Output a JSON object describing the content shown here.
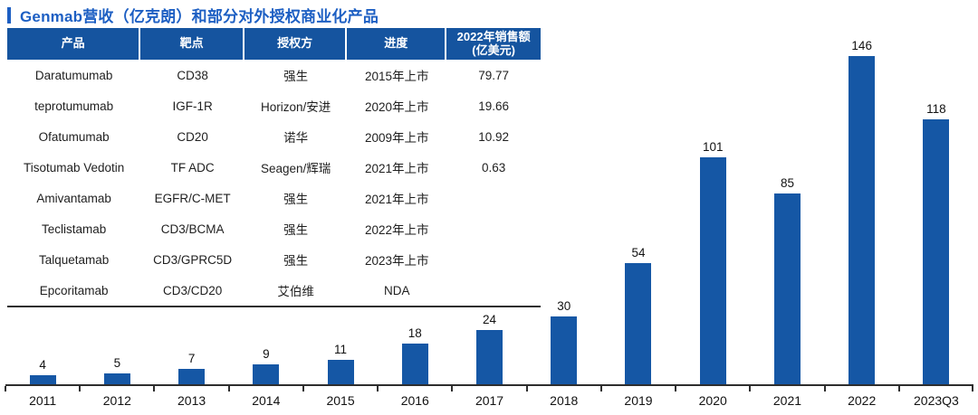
{
  "title": {
    "text": "Genmab营收（亿克朗）和部分对外授权商业化产品",
    "accent_color": "#1d5fc3"
  },
  "table": {
    "header_bg_color": "#15549f",
    "headers": [
      "产品",
      "靶点",
      "授权方",
      "进度",
      "2022年销售额\n(亿美元)"
    ],
    "rows": [
      [
        "Daratumumab",
        "CD38",
        "强生",
        "2015年上市",
        "79.77"
      ],
      [
        "teprotumumab",
        "IGF-1R",
        "Horizon/安进",
        "2020年上市",
        "19.66"
      ],
      [
        "Ofatumumab",
        "CD20",
        "诺华",
        "2009年上市",
        "10.92"
      ],
      [
        "Tisotumab Vedotin",
        "TF ADC",
        "Seagen/辉瑞",
        "2021年上市",
        "0.63"
      ],
      [
        "Amivantamab",
        "EGFR/C-MET",
        "强生",
        "2021年上市",
        ""
      ],
      [
        "Teclistamab",
        "CD3/BCMA",
        "强生",
        "2022年上市",
        ""
      ],
      [
        "Talquetamab",
        "CD3/GPRC5D",
        "强生",
        "2023年上市",
        ""
      ],
      [
        "Epcoritamab",
        "CD3/CD20",
        "艾伯维",
        "NDA",
        ""
      ]
    ]
  },
  "chart_data": {
    "type": "bar",
    "title": "Genmab营收（亿克朗）",
    "categories": [
      "2011",
      "2012",
      "2013",
      "2014",
      "2015",
      "2016",
      "2017",
      "2018",
      "2019",
      "2020",
      "2021",
      "2022",
      "2023Q3"
    ],
    "values": [
      4,
      5,
      7,
      9,
      11,
      18,
      24,
      30,
      54,
      101,
      85,
      146,
      118
    ],
    "xlabel": "",
    "ylabel": "",
    "ylim": [
      0,
      150
    ],
    "grid": false,
    "legend": false,
    "value_labels": true,
    "bar_color": "#1557a5",
    "axis_color": "#2e2e2e"
  }
}
